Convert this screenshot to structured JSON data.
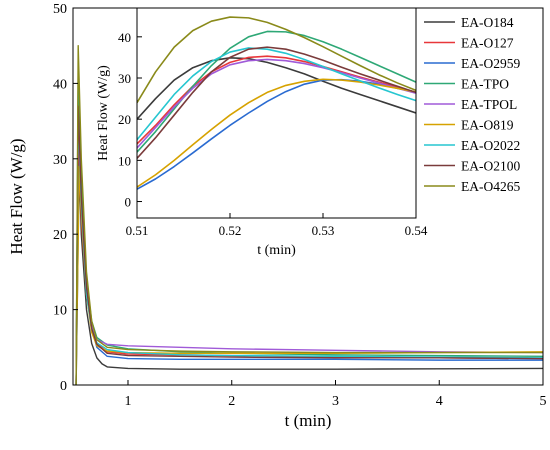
{
  "chart_data": [
    {
      "type": "line",
      "xlabel": "t (min)",
      "ylabel": "Heat Flow (W/g)",
      "xlim": [
        0.47,
        5.0
      ],
      "ylim": [
        0,
        50
      ],
      "xticks": [
        1,
        2,
        3,
        4,
        5
      ],
      "yticks": [
        0,
        10,
        20,
        30,
        40,
        50
      ],
      "legend_position": "top-right",
      "series": [
        {
          "name": "EA-O184",
          "color": "#3b3b3b",
          "x": [
            0.5,
            0.52,
            0.55,
            0.6,
            0.65,
            0.7,
            0.75,
            0.8,
            1.0,
            1.5,
            2,
            3,
            4,
            5
          ],
          "y": [
            0,
            33,
            20,
            10,
            5.5,
            3.6,
            2.8,
            2.4,
            2.2,
            2.1,
            2.1,
            2.1,
            2.15,
            2.2
          ]
        },
        {
          "name": "EA-O127",
          "color": "#e8373a",
          "x": [
            0.5,
            0.52,
            0.55,
            0.6,
            0.65,
            0.7,
            0.8,
            1.0,
            1.5,
            2,
            3,
            4,
            5
          ],
          "y": [
            0,
            34,
            22,
            12,
            7.5,
            5.5,
            4.4,
            4.1,
            4.0,
            3.9,
            3.7,
            3.6,
            3.5
          ]
        },
        {
          "name": "EA-O2959",
          "color": "#2a6bd1",
          "x": [
            0.5,
            0.53,
            0.55,
            0.6,
            0.65,
            0.7,
            0.8,
            1.0,
            1.5,
            2,
            3,
            4,
            5
          ],
          "y": [
            0,
            29,
            24,
            13,
            7.5,
            5.0,
            3.8,
            3.5,
            3.4,
            3.4,
            3.4,
            3.3,
            3.3
          ]
        },
        {
          "name": "EA-TPO",
          "color": "#2ea876",
          "x": [
            0.5,
            0.52,
            0.55,
            0.6,
            0.65,
            0.7,
            0.8,
            1.0,
            1.5,
            2,
            3,
            4,
            5
          ],
          "y": [
            0,
            41,
            27,
            14,
            8.5,
            6.3,
            5.3,
            4.8,
            4.4,
            4.2,
            4.0,
            3.9,
            3.8
          ]
        },
        {
          "name": "EA-TPOL",
          "color": "#a05ad8",
          "x": [
            0.5,
            0.52,
            0.55,
            0.6,
            0.65,
            0.7,
            0.8,
            1.0,
            1.5,
            2,
            3,
            4,
            5
          ],
          "y": [
            0,
            35,
            24,
            13,
            8.0,
            6.0,
            5.4,
            5.2,
            5.0,
            4.8,
            4.6,
            4.4,
            4.3
          ]
        },
        {
          "name": "EA-O819",
          "color": "#d6a200",
          "x": [
            0.5,
            0.53,
            0.55,
            0.6,
            0.65,
            0.7,
            0.8,
            1.0,
            1.5,
            2,
            3,
            4,
            5
          ],
          "y": [
            0,
            29,
            23,
            12,
            7.0,
            5.2,
            4.5,
            4.3,
            4.2,
            4.2,
            4.2,
            4.3,
            4.4
          ]
        },
        {
          "name": "EA-O2022",
          "color": "#26c6d0",
          "x": [
            0.5,
            0.52,
            0.55,
            0.6,
            0.65,
            0.7,
            0.8,
            1.0,
            1.5,
            2,
            3,
            4,
            5
          ],
          "y": [
            0,
            36,
            24,
            12,
            7.5,
            5.6,
            4.7,
            4.3,
            4.0,
            3.9,
            3.8,
            3.7,
            3.6
          ]
        },
        {
          "name": "EA-O2100",
          "color": "#7a3b3b",
          "x": [
            0.5,
            0.52,
            0.55,
            0.6,
            0.65,
            0.7,
            0.8,
            1.0,
            1.5,
            2,
            3,
            4,
            5
          ],
          "y": [
            0,
            37,
            25,
            13,
            7.5,
            5.4,
            4.2,
            3.9,
            3.8,
            3.7,
            3.6,
            3.6,
            3.5
          ]
        },
        {
          "name": "EA-O4265",
          "color": "#8a8a1a",
          "x": [
            0.5,
            0.52,
            0.55,
            0.6,
            0.65,
            0.7,
            0.8,
            1.0,
            1.5,
            2,
            3,
            4,
            5
          ],
          "y": [
            0,
            45,
            30,
            15,
            8.5,
            6.0,
            5.0,
            4.7,
            4.5,
            4.4,
            4.3,
            4.3,
            4.3
          ]
        }
      ]
    },
    {
      "type": "line",
      "xlabel": "t (min)",
      "ylabel": "Heat Flow (W/g)",
      "xlim": [
        0.51,
        0.54
      ],
      "ylim": [
        -4,
        47
      ],
      "xticks": [
        0.51,
        0.52,
        0.53,
        0.54
      ],
      "xtick_labels": [
        "0.51",
        "0.52",
        "0.53",
        "0.54"
      ],
      "yticks": [
        0,
        10,
        20,
        30,
        40
      ],
      "series": [
        {
          "name": "EA-O184",
          "color": "#3b3b3b",
          "x": [
            0.51,
            0.512,
            0.514,
            0.516,
            0.518,
            0.52,
            0.522,
            0.524,
            0.526,
            0.528,
            0.53,
            0.532,
            0.534,
            0.536,
            0.538,
            0.54
          ],
          "y": [
            20,
            25,
            29.5,
            32.5,
            34.2,
            34.9,
            34.7,
            33.8,
            32.5,
            31.0,
            29.2,
            27.5,
            26.0,
            24.5,
            23.0,
            21.5
          ]
        },
        {
          "name": "EA-O127",
          "color": "#e8373a",
          "x": [
            0.51,
            0.512,
            0.514,
            0.516,
            0.518,
            0.52,
            0.522,
            0.524,
            0.526,
            0.528,
            0.53,
            0.532,
            0.534,
            0.536,
            0.538,
            0.54
          ],
          "y": [
            14,
            18.5,
            23.5,
            28.0,
            31.5,
            33.8,
            35.0,
            35.3,
            34.9,
            34.0,
            32.8,
            31.5,
            30.2,
            29.0,
            27.8,
            26.5
          ]
        },
        {
          "name": "EA-O2959",
          "color": "#2a6bd1",
          "x": [
            0.51,
            0.512,
            0.514,
            0.516,
            0.518,
            0.52,
            0.522,
            0.524,
            0.526,
            0.528,
            0.53,
            0.532,
            0.534,
            0.536,
            0.538,
            0.54
          ],
          "y": [
            3,
            5.5,
            8.5,
            11.8,
            15.2,
            18.5,
            21.5,
            24.3,
            26.7,
            28.5,
            29.5,
            29.6,
            29.2,
            28.5,
            27.5,
            26.5
          ]
        },
        {
          "name": "EA-TPO",
          "color": "#2ea876",
          "x": [
            0.51,
            0.512,
            0.514,
            0.516,
            0.518,
            0.52,
            0.522,
            0.524,
            0.526,
            0.528,
            0.53,
            0.532,
            0.534,
            0.536,
            0.538,
            0.54
          ],
          "y": [
            12,
            17,
            22.5,
            28.0,
            33.0,
            37.2,
            40.0,
            41.3,
            41.2,
            40.3,
            38.8,
            37.0,
            35.0,
            33.0,
            31.0,
            29.0
          ]
        },
        {
          "name": "EA-TPOL",
          "color": "#a05ad8",
          "x": [
            0.51,
            0.512,
            0.514,
            0.516,
            0.518,
            0.52,
            0.522,
            0.524,
            0.526,
            0.528,
            0.53,
            0.532,
            0.534,
            0.536,
            0.538,
            0.54
          ],
          "y": [
            13,
            18,
            23.0,
            27.5,
            31.0,
            33.2,
            34.2,
            34.5,
            34.2,
            33.5,
            32.5,
            31.3,
            30.0,
            28.8,
            27.5,
            26.3
          ]
        },
        {
          "name": "EA-O819",
          "color": "#d6a200",
          "x": [
            0.51,
            0.512,
            0.514,
            0.516,
            0.518,
            0.52,
            0.522,
            0.524,
            0.526,
            0.528,
            0.53,
            0.532,
            0.534,
            0.536,
            0.538,
            0.54
          ],
          "y": [
            3.5,
            6.5,
            10.0,
            13.8,
            17.5,
            21.0,
            24.0,
            26.5,
            28.2,
            29.2,
            29.7,
            29.5,
            29.0,
            28.3,
            27.5,
            26.6
          ]
        },
        {
          "name": "EA-O2022",
          "color": "#26c6d0",
          "x": [
            0.51,
            0.512,
            0.514,
            0.516,
            0.518,
            0.52,
            0.522,
            0.524,
            0.526,
            0.528,
            0.53,
            0.532,
            0.534,
            0.536,
            0.538,
            0.54
          ],
          "y": [
            15,
            20.5,
            26.0,
            30.5,
            34.0,
            36.3,
            37.3,
            37.0,
            36.0,
            34.5,
            32.8,
            31.0,
            29.3,
            27.6,
            26.0,
            24.5
          ]
        },
        {
          "name": "EA-O2100",
          "color": "#7a3b3b",
          "x": [
            0.51,
            0.512,
            0.514,
            0.516,
            0.518,
            0.52,
            0.522,
            0.524,
            0.526,
            0.528,
            0.53,
            0.532,
            0.534,
            0.536,
            0.538,
            0.54
          ],
          "y": [
            10.5,
            15.5,
            21.0,
            26.5,
            31.5,
            35.0,
            37.0,
            37.5,
            37.0,
            35.8,
            34.3,
            32.6,
            31.0,
            29.5,
            28.0,
            26.5
          ]
        },
        {
          "name": "EA-O4265",
          "color": "#8a8a1a",
          "x": [
            0.51,
            0.512,
            0.514,
            0.516,
            0.518,
            0.52,
            0.522,
            0.524,
            0.526,
            0.528,
            0.53,
            0.532,
            0.534,
            0.536,
            0.538,
            0.54
          ],
          "y": [
            24,
            31.5,
            37.5,
            41.5,
            43.8,
            44.8,
            44.6,
            43.5,
            41.8,
            39.8,
            37.6,
            35.3,
            33.0,
            30.8,
            28.8,
            27.0
          ]
        }
      ]
    }
  ]
}
